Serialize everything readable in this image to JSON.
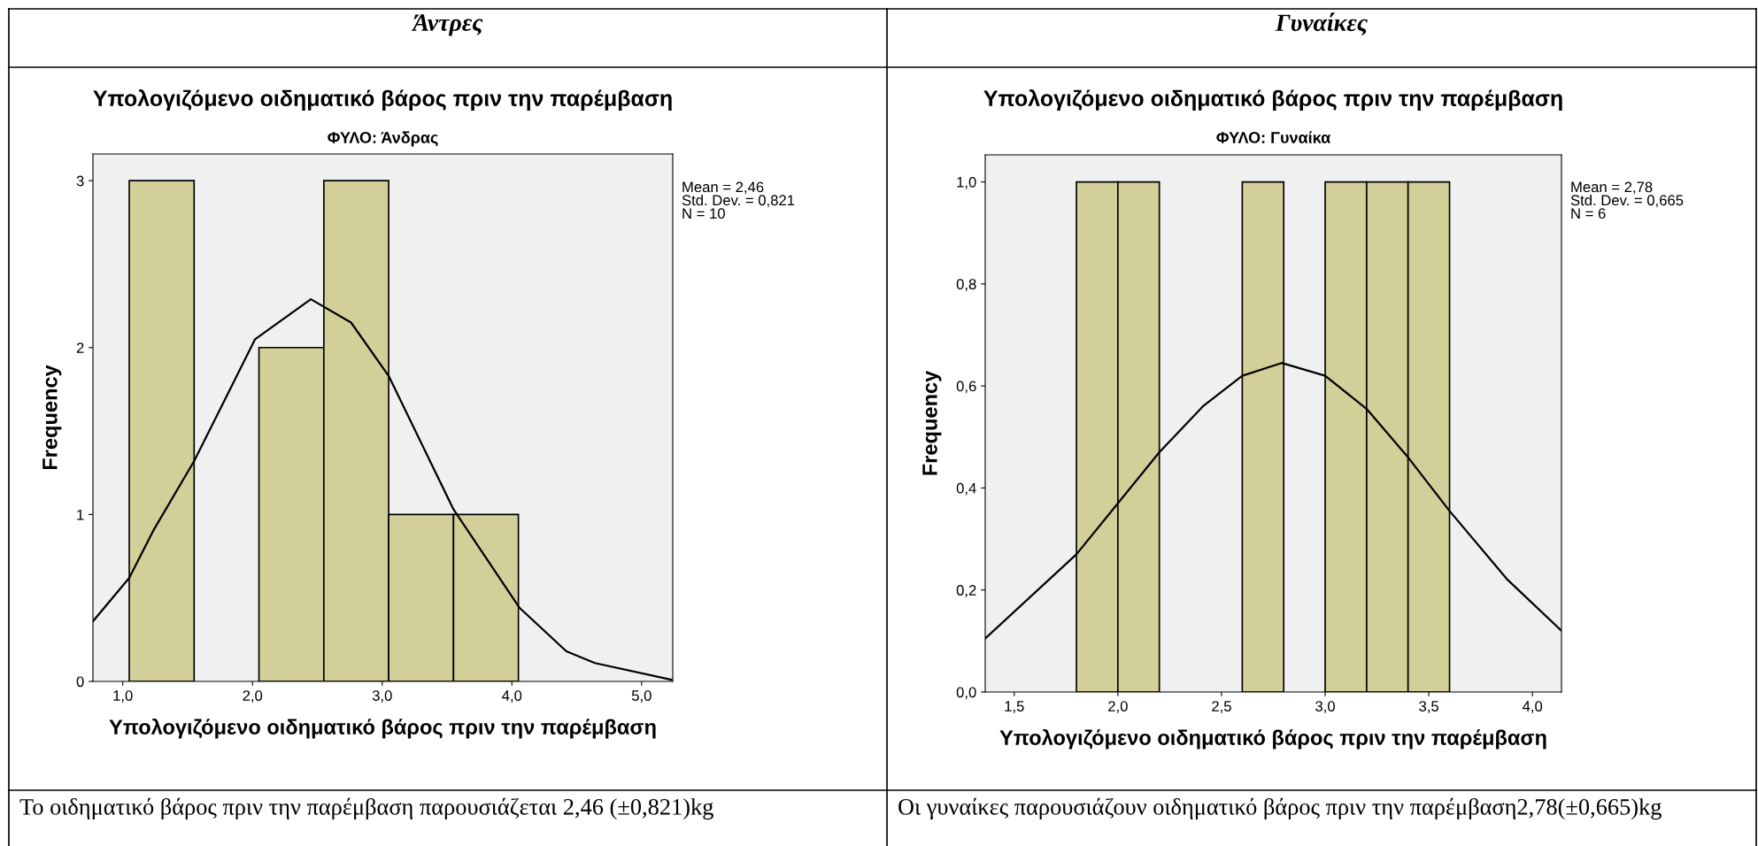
{
  "chart_data": [
    {
      "type": "histogram",
      "title": "Υπολογιζόμενο οιδηματικό βάρος πριν την παρέμβαση",
      "subtitle": "ΦΥΛΟ: Άνδρας",
      "xlabel": "Υπολογιζόμενο οιδηματικό βάρος πριν την παρέμβαση",
      "ylabel": "Frequency",
      "annotations": [
        "Άντρες",
        "Mean = 2,46\nStd. Dev. = 0,821\nN = 10",
        "Το οιδηματικό βάρος πριν την παρέμβαση παρουσιάζεται 2,46 (±0,821)kg"
      ],
      "bins": [
        1.05,
        1.55,
        2.05,
        2.55,
        3.05,
        3.55,
        4.05
      ],
      "values": [
        3,
        0,
        2,
        3,
        1,
        1
      ],
      "color": "#d3cf99",
      "series": [
        {
          "type": "line",
          "color": "#000000",
          "x": [
            0.77,
            1.05,
            1.24,
            1.55,
            2.02,
            2.45,
            2.76,
            3.05,
            3.55,
            4.06,
            4.42,
            4.64,
            5.23
          ],
          "values": [
            0.36,
            0.62,
            0.91,
            1.32,
            2.05,
            2.29,
            2.15,
            1.83,
            1.03,
            0.44,
            0.18,
            0.11,
            0.01
          ]
        }
      ],
      "xlim": [
        0.77,
        5.24
      ],
      "ylim": [
        0,
        3.16
      ],
      "xticks": [
        {
          "value": 1,
          "label": "1,0"
        },
        {
          "value": 2,
          "label": "2,0"
        },
        {
          "value": 3,
          "label": "3,0"
        },
        {
          "value": 4,
          "label": "4,0"
        },
        {
          "value": 5,
          "label": "5,0"
        }
      ],
      "yticks": [
        0,
        1,
        2,
        3
      ],
      "grid": false,
      "legend": false
    },
    {
      "type": "histogram",
      "title": "Υπολογιζόμενο οιδηματικό βάρος πριν την παρέμβαση",
      "subtitle": "ΦΥΛΟ: Γυναίκα",
      "xlabel": "Υπολογιζόμενο οιδηματικό βάρος πριν την παρέμβαση",
      "ylabel": "Frequency",
      "annotations": [
        "Γυναίκες",
        "Mean = 2,78\nStd. Dev. = 0,665\nN = 6",
        "Οι γυναίκες παρουσιάζουν οιδηματικό βάρος πριν την παρέμβαση2,78(±0,665)kg"
      ],
      "bins": [
        1.8,
        2.0,
        2.2,
        2.4,
        2.6,
        2.8,
        3.0,
        3.2,
        3.4,
        3.6
      ],
      "values": [
        1,
        1,
        0,
        0,
        1,
        0,
        1,
        1,
        1
      ],
      "color": "#d3cf99",
      "series": [
        {
          "type": "line",
          "color": "#000000",
          "x": [
            1.36,
            1.8,
            2.0,
            2.2,
            2.41,
            2.6,
            2.79,
            3.0,
            3.2,
            3.4,
            3.6,
            3.88,
            4.14
          ],
          "values": [
            0.105,
            0.27,
            0.37,
            0.47,
            0.56,
            0.62,
            0.645,
            0.62,
            0.555,
            0.46,
            0.355,
            0.22,
            0.12
          ]
        }
      ],
      "xlim": [
        1.36,
        4.14
      ],
      "ylim": [
        0,
        1.053
      ],
      "xticks": [
        {
          "value": 1.5,
          "label": "1,5"
        },
        {
          "value": 2,
          "label": "2,0"
        },
        {
          "value": 2.5,
          "label": "2,5"
        },
        {
          "value": 3,
          "label": "3,0"
        },
        {
          "value": 3.5,
          "label": "3,5"
        },
        {
          "value": 4,
          "label": "4,0"
        }
      ],
      "yticks": [
        {
          "value": 0,
          "label": "0,0"
        },
        {
          "value": 0.2,
          "label": "0,2"
        },
        {
          "value": 0.4,
          "label": "0,4"
        },
        {
          "value": 0.6,
          "label": "0,6"
        },
        {
          "value": 0.8,
          "label": "0,8"
        },
        {
          "value": 1,
          "label": "1,0"
        }
      ],
      "grid": false,
      "legend": false
    }
  ]
}
